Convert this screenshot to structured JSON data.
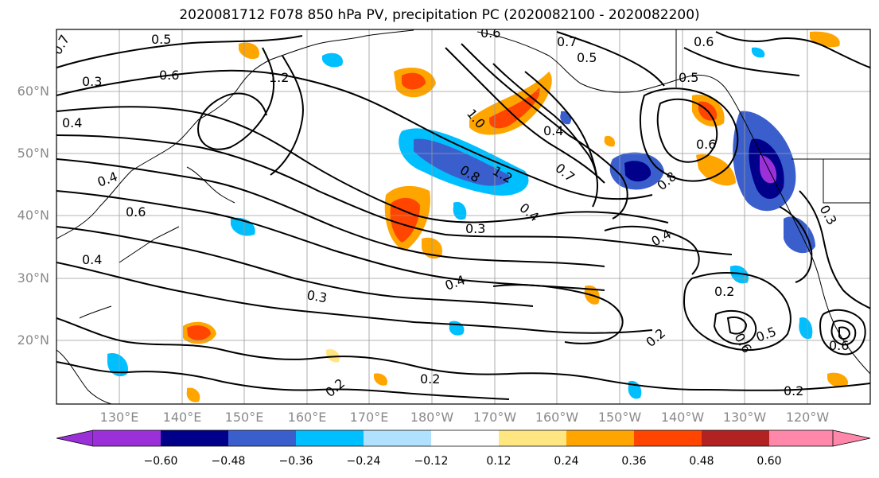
{
  "title": "2020081712 F078 850 hPa PV, precipitation PC (2020082100 - 2020082200)",
  "lat_labels": [
    "60°N",
    "50°N",
    "40°N",
    "30°N",
    "20°N"
  ],
  "lon_labels": [
    "130°E",
    "140°E",
    "150°E",
    "160°E",
    "170°E",
    "180°W",
    "170°W",
    "160°W",
    "150°W",
    "140°W",
    "130°W",
    "120°W"
  ],
  "colorbar": {
    "ticks": [
      "−0.60",
      "−0.48",
      "−0.36",
      "−0.24",
      "−0.12",
      "0.12",
      "0.24",
      "0.36",
      "0.48",
      "0.60"
    ],
    "colors": [
      "#9b30d9",
      "#00008b",
      "#3a5fcd",
      "#00bfff",
      "#b0e2ff",
      "#ffffff",
      "#ffe680",
      "#ffa500",
      "#ff4500",
      "#b22222",
      "#ff88aa"
    ]
  },
  "contour_labels": [
    "0.7",
    "0.5",
    "0.6",
    "0.3",
    "0.4",
    "1.2",
    "0.6",
    "0.7",
    "0.5",
    "0.6",
    "0.5",
    "1.0",
    "0.4",
    "0.7",
    "0.8",
    "0.6",
    "0.3",
    "0.8",
    "1.2",
    "0.4",
    "0.4",
    "0.6",
    "0.3",
    "0.4",
    "0.3",
    "0.4",
    "0.2",
    "0.2",
    "0.4",
    "0.2",
    "0.2",
    "0.6",
    "0.5",
    "0.2",
    "0.6"
  ],
  "features": {
    "pv_contours": "black-contour",
    "precip_shading": "filled"
  }
}
